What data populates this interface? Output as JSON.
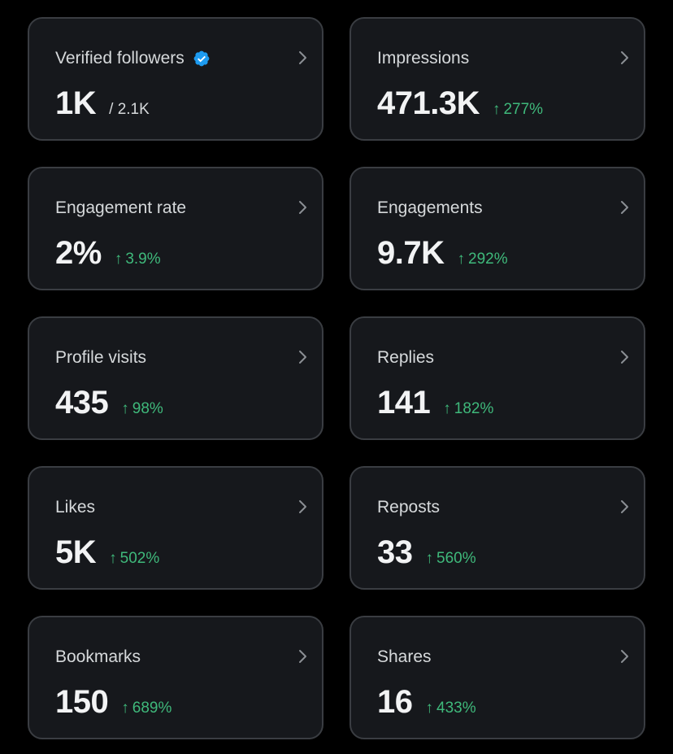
{
  "colors": {
    "background": "#000000",
    "card": "#16181c",
    "border": "#3a3d42",
    "label": "#d6d9db",
    "value": "#f2f3f4",
    "positive": "#3fb97b",
    "verified": "#1d9bf0"
  },
  "icons": {
    "chevron": "chevron-right-icon",
    "verified": "verified-badge-icon",
    "trend": "arrow-up-icon"
  },
  "metrics": {
    "verified_followers": {
      "label": "Verified followers",
      "value": "1K",
      "total": "/ 2.1K"
    },
    "impressions": {
      "label": "Impressions",
      "value": "471.3K",
      "arrow": "↑",
      "change": "277%"
    },
    "engagement_rate": {
      "label": "Engagement rate",
      "value": "2%",
      "arrow": "↑",
      "change": "3.9%"
    },
    "engagements": {
      "label": "Engagements",
      "value": "9.7K",
      "arrow": "↑",
      "change": "292%"
    },
    "profile_visits": {
      "label": "Profile visits",
      "value": "435",
      "arrow": "↑",
      "change": "98%"
    },
    "replies": {
      "label": "Replies",
      "value": "141",
      "arrow": "↑",
      "change": "182%"
    },
    "likes": {
      "label": "Likes",
      "value": "5K",
      "arrow": "↑",
      "change": "502%"
    },
    "reposts": {
      "label": "Reposts",
      "value": "33",
      "arrow": "↑",
      "change": "560%"
    },
    "bookmarks": {
      "label": "Bookmarks",
      "value": "150",
      "arrow": "↑",
      "change": "689%"
    },
    "shares": {
      "label": "Shares",
      "value": "16",
      "arrow": "↑",
      "change": "433%"
    }
  }
}
